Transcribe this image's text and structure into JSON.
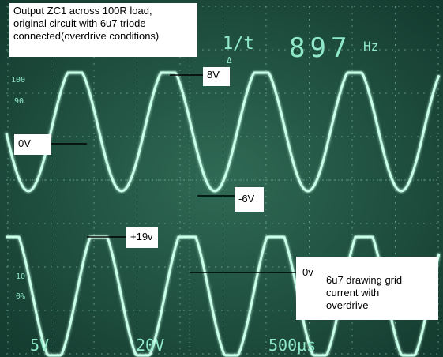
{
  "annotations": {
    "title": [
      "Output ZC1 across 100R load,",
      "original circuit with 6u7 triode",
      "connected(overdrive conditions)"
    ],
    "peak_top": "8V",
    "zero_top": "0V",
    "trough_top": "-6V",
    "peak_bottom": "+19v",
    "zero_bottom": "0v",
    "note": [
      "6u7 drawing grid",
      "current with",
      "overdrive"
    ]
  },
  "scope": {
    "mode": "1/t",
    "delta": "Δ",
    "frequency": "897",
    "unit": "Hz",
    "scale_marks": [
      "100",
      "90",
      "10",
      "0%"
    ],
    "footer": [
      "5V",
      "20V",
      "500µs"
    ]
  }
}
